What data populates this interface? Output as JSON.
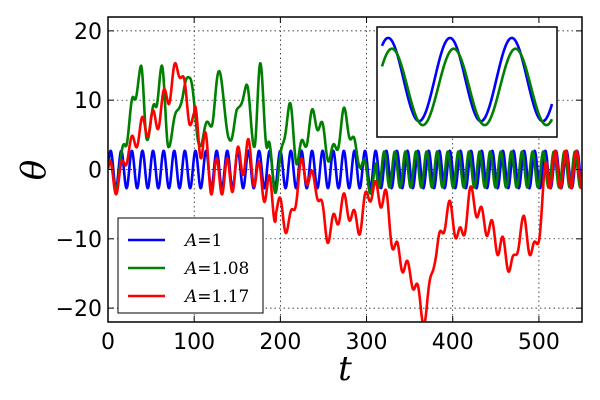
{
  "chart_data": {
    "type": "line",
    "xlabel": "t",
    "ylabel": "θ",
    "xlim": [
      0,
      550
    ],
    "ylim": [
      -22,
      22
    ],
    "xticks": [
      0,
      100,
      200,
      300,
      400,
      500
    ],
    "yticks": [
      20,
      10,
      0,
      -10,
      -20
    ],
    "xtick_labels": [
      "0",
      "100",
      "200",
      "300",
      "400",
      "500"
    ],
    "ytick_labels": [
      "20",
      "10",
      "0",
      "−10",
      "−20"
    ],
    "grid": true,
    "grid_style": "dotted",
    "legend_position": "lower-left",
    "series": [
      {
        "name": "A=1",
        "legend_symbol": "A",
        "legend_value": "1",
        "color": "#0000ff",
        "description": "steady oscillation, amplitude ~2.7",
        "points": [
          [
            0,
            0
          ],
          [
            5,
            1.4
          ],
          [
            15,
            2.7
          ],
          [
            25,
            -2.7
          ],
          [
            50,
            2.7
          ],
          [
            100,
            -2.7
          ],
          [
            200,
            2.7
          ],
          [
            300,
            -2.7
          ],
          [
            400,
            2.7
          ],
          [
            500,
            -2.7
          ],
          [
            550,
            2.7
          ]
        ]
      },
      {
        "name": "A=1.08",
        "legend_symbol": "A",
        "legend_value": "1.08",
        "color": "#008000",
        "description": "large swings 4–15 until t≈185, then decays and settles to oscillation near 0 after t≈310",
        "points": [
          [
            0,
            1
          ],
          [
            10,
            -2
          ],
          [
            20,
            4
          ],
          [
            30,
            10
          ],
          [
            38,
            14.5
          ],
          [
            45,
            5
          ],
          [
            55,
            9
          ],
          [
            62,
            14.7
          ],
          [
            70,
            4
          ],
          [
            85,
            10
          ],
          [
            95,
            14
          ],
          [
            105,
            4
          ],
          [
            120,
            7
          ],
          [
            130,
            14.3
          ],
          [
            140,
            4
          ],
          [
            150,
            8
          ],
          [
            160,
            12
          ],
          [
            170,
            4
          ],
          [
            177,
            14.8
          ],
          [
            185,
            3
          ],
          [
            195,
            -2
          ],
          [
            210,
            8.5
          ],
          [
            220,
            2
          ],
          [
            240,
            7.5
          ],
          [
            260,
            2
          ],
          [
            275,
            7.5
          ],
          [
            290,
            2
          ],
          [
            305,
            -2
          ],
          [
            320,
            2
          ],
          [
            400,
            -2.5
          ],
          [
            500,
            2.5
          ],
          [
            550,
            -2.5
          ]
        ]
      },
      {
        "name": "A=1.17",
        "legend_symbol": "A",
        "legend_value": "1.17",
        "color": "#ff0000",
        "description": "chaotic motion, reaching about 15 near t≈80 and about −21 near t≈368, then oscillating near 0 after t≈510",
        "points": [
          [
            0,
            0
          ],
          [
            10,
            -2
          ],
          [
            25,
            3
          ],
          [
            40,
            6
          ],
          [
            55,
            7
          ],
          [
            70,
            11
          ],
          [
            82,
            15
          ],
          [
            95,
            8
          ],
          [
            110,
            4
          ],
          [
            120,
            -1
          ],
          [
            140,
            -1
          ],
          [
            160,
            2
          ],
          [
            180,
            -2
          ],
          [
            195,
            -5
          ],
          [
            210,
            -8
          ],
          [
            225,
            0
          ],
          [
            240,
            -2
          ],
          [
            255,
            -9
          ],
          [
            275,
            -5
          ],
          [
            290,
            -8
          ],
          [
            305,
            -3
          ],
          [
            320,
            -4
          ],
          [
            335,
            -12
          ],
          [
            350,
            -15
          ],
          [
            368,
            -21
          ],
          [
            380,
            -12
          ],
          [
            395,
            -6
          ],
          [
            410,
            -10
          ],
          [
            420,
            -4
          ],
          [
            440,
            -8
          ],
          [
            455,
            -11
          ],
          [
            470,
            -14
          ],
          [
            480,
            -8
          ],
          [
            495,
            -12
          ],
          [
            510,
            0
          ],
          [
            530,
            -2
          ],
          [
            550,
            2
          ]
        ]
      }
    ],
    "inset": {
      "position": "top-right",
      "series": [
        {
          "color": "#0000ff",
          "description": "smooth sinusoid, about 2.8 cycles, upper curve"
        },
        {
          "color": "#008000",
          "description": "smooth sinusoid, same phase, slightly lower and lagging"
        }
      ]
    }
  }
}
